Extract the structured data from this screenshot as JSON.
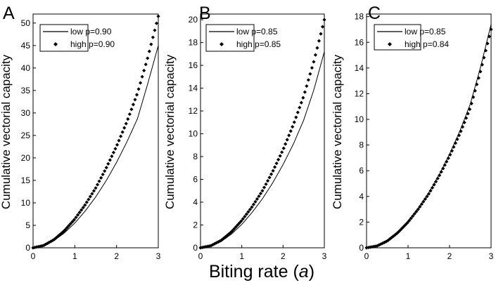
{
  "figure": {
    "xlabel_prefix": "Biting rate (",
    "xlabel_symbol": "a",
    "xlabel_suffix": ")"
  },
  "chart_data": [
    {
      "type": "line",
      "panel_label": "A",
      "xlabel": "Biting rate (a)",
      "ylabel": "Cumulative vectorial capacity",
      "xlim": [
        0,
        3
      ],
      "ylim": [
        0,
        52
      ],
      "xticks": [
        0,
        1,
        2,
        3
      ],
      "yticks": [
        0,
        5,
        10,
        15,
        20,
        25,
        30,
        35,
        40,
        45,
        50
      ],
      "grid": false,
      "legend": "top-left",
      "series": [
        {
          "name": "low p=0.90",
          "style": "line",
          "x": [
            0,
            0.25,
            0.5,
            0.75,
            1.0,
            1.25,
            1.5,
            1.75,
            2.0,
            2.25,
            2.5,
            2.75,
            3.0
          ],
          "y": [
            0,
            0.45,
            1.6,
            3.3,
            5.5,
            8.2,
            11.3,
            14.9,
            19.0,
            23.6,
            28.7,
            36.6,
            45.0
          ]
        },
        {
          "name": "high p=0.90",
          "style": "markers",
          "x": [
            0,
            0.25,
            0.5,
            0.75,
            1.0,
            1.25,
            1.5,
            1.75,
            2.0,
            2.25,
            2.5,
            2.75,
            3.0
          ],
          "y": [
            0,
            0.5,
            1.8,
            3.8,
            6.4,
            9.6,
            13.3,
            17.7,
            22.6,
            28.1,
            34.4,
            42.4,
            51.5
          ]
        }
      ]
    },
    {
      "type": "line",
      "panel_label": "B",
      "xlabel": "Biting rate (a)",
      "ylabel": "Cumulative vectorial capacity",
      "xlim": [
        0,
        3
      ],
      "ylim": [
        0,
        20.5
      ],
      "xticks": [
        0,
        1,
        2,
        3
      ],
      "yticks": [
        0,
        2,
        4,
        6,
        8,
        10,
        12,
        14,
        16,
        18,
        20
      ],
      "grid": false,
      "legend": "top-left",
      "series": [
        {
          "name": "low p=0.85",
          "style": "line",
          "x": [
            0,
            0.25,
            0.5,
            0.75,
            1.0,
            1.25,
            1.5,
            1.75,
            2.0,
            2.25,
            2.5,
            2.75,
            3.0
          ],
          "y": [
            0,
            0.15,
            0.55,
            1.2,
            2.05,
            3.1,
            4.3,
            5.7,
            7.3,
            9.1,
            11.2,
            13.9,
            17.2
          ]
        },
        {
          "name": "high p=0.85",
          "style": "markers",
          "x": [
            0,
            0.25,
            0.5,
            0.75,
            1.0,
            1.25,
            1.5,
            1.75,
            2.0,
            2.25,
            2.5,
            2.75,
            3.0
          ],
          "y": [
            0,
            0.18,
            0.65,
            1.4,
            2.4,
            3.6,
            5.0,
            6.7,
            8.6,
            10.8,
            13.3,
            16.4,
            20.0
          ]
        }
      ]
    },
    {
      "type": "line",
      "panel_label": "C",
      "xlabel": "Biting rate (a)",
      "ylabel": "Cumulative vectorial capacity",
      "xlim": [
        0,
        3
      ],
      "ylim": [
        0,
        18.2
      ],
      "xticks": [
        0,
        1,
        2,
        3
      ],
      "yticks": [
        0,
        2,
        4,
        6,
        8,
        10,
        12,
        14,
        16,
        18
      ],
      "grid": false,
      "legend": "top-left",
      "series": [
        {
          "name": "low p=0.85",
          "style": "line",
          "x": [
            0,
            0.25,
            0.5,
            0.75,
            1.0,
            1.25,
            1.5,
            1.75,
            2.0,
            2.25,
            2.5,
            2.75,
            3.0
          ],
          "y": [
            0,
            0.15,
            0.55,
            1.2,
            2.05,
            3.1,
            4.3,
            5.7,
            7.3,
            9.1,
            11.2,
            14.1,
            17.4
          ]
        },
        {
          "name": "high p=0.84",
          "style": "markers",
          "x": [
            0,
            0.25,
            0.5,
            0.75,
            1.0,
            1.25,
            1.5,
            1.75,
            2.0,
            2.25,
            2.5,
            2.75,
            3.0
          ],
          "y": [
            0,
            0.14,
            0.53,
            1.17,
            2.0,
            3.03,
            4.2,
            5.6,
            7.15,
            8.9,
            10.9,
            13.8,
            17.0
          ]
        }
      ]
    }
  ]
}
